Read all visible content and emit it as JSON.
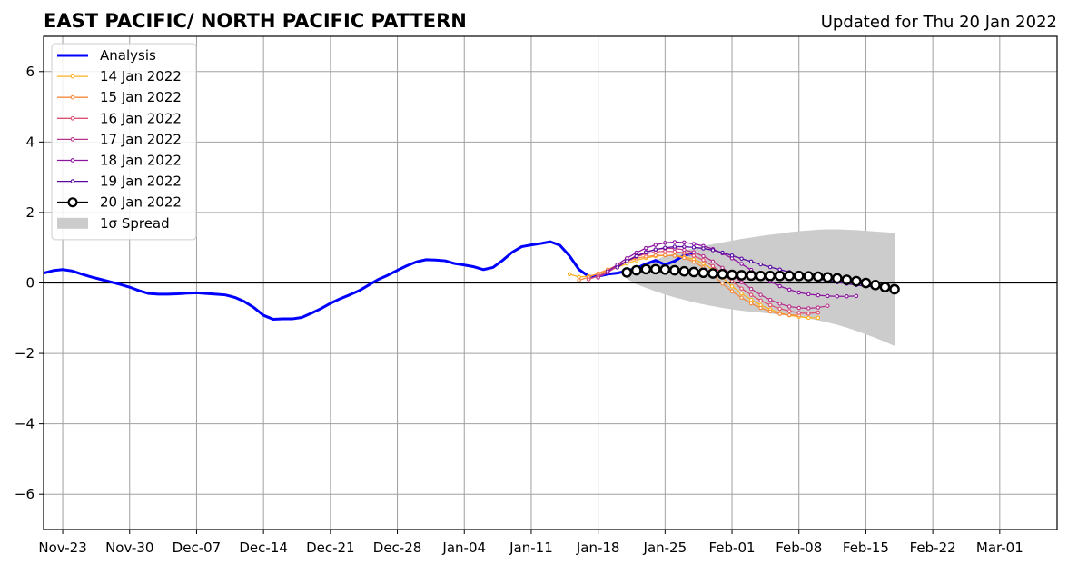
{
  "chart_data": {
    "type": "line",
    "title": "EAST PACIFIC/ NORTH PACIFIC PATTERN",
    "subtitle": "Updated for Thu 20 Jan 2022",
    "xlabel": "",
    "ylabel": "",
    "x_start_date": "2021-11-21",
    "x_end_date": "2022-03-07",
    "ylim": [
      -7,
      7
    ],
    "y_ticks": [
      -6,
      -4,
      -2,
      0,
      2,
      4,
      6
    ],
    "y_tick_labels": [
      "−6",
      "−4",
      "−2",
      "0",
      "2",
      "4",
      "6"
    ],
    "x_ticks": [
      {
        "date": "2021-11-23",
        "label": "Nov-23"
      },
      {
        "date": "2021-11-30",
        "label": "Nov-30"
      },
      {
        "date": "2021-12-07",
        "label": "Dec-07"
      },
      {
        "date": "2021-12-14",
        "label": "Dec-14"
      },
      {
        "date": "2021-12-21",
        "label": "Dec-21"
      },
      {
        "date": "2021-12-28",
        "label": "Dec-28"
      },
      {
        "date": "2022-01-04",
        "label": "Jan-04"
      },
      {
        "date": "2022-01-11",
        "label": "Jan-11"
      },
      {
        "date": "2022-01-18",
        "label": "Jan-18"
      },
      {
        "date": "2022-01-25",
        "label": "Jan-25"
      },
      {
        "date": "2022-02-01",
        "label": "Feb-01"
      },
      {
        "date": "2022-02-08",
        "label": "Feb-08"
      },
      {
        "date": "2022-02-15",
        "label": "Feb-15"
      },
      {
        "date": "2022-02-22",
        "label": "Feb-22"
      },
      {
        "date": "2022-03-01",
        "label": "Mar-01"
      }
    ],
    "grid": true,
    "legend_position": "top-left",
    "analysis": {
      "name": "Analysis",
      "color": "#0000ff",
      "start_date": "2021-11-21",
      "values": [
        0.28,
        0.35,
        0.38,
        0.34,
        0.25,
        0.17,
        0.1,
        0.03,
        -0.04,
        -0.12,
        -0.22,
        -0.3,
        -0.32,
        -0.32,
        -0.31,
        -0.29,
        -0.28,
        -0.3,
        -0.32,
        -0.34,
        -0.41,
        -0.53,
        -0.7,
        -0.92,
        -1.03,
        -1.02,
        -1.02,
        -0.98,
        -0.86,
        -0.73,
        -0.58,
        -0.45,
        -0.34,
        -0.22,
        -0.06,
        0.1,
        0.22,
        0.36,
        0.49,
        0.6,
        0.66,
        0.65,
        0.63,
        0.55,
        0.51,
        0.46,
        0.38,
        0.44,
        0.64,
        0.87,
        1.03,
        1.08,
        1.12,
        1.17,
        1.07,
        0.77,
        0.38,
        0.19,
        0.19,
        0.25,
        0.28,
        0.34,
        0.42,
        0.54,
        0.64,
        0.52,
        0.62,
        0.79,
        0.84
      ]
    },
    "forecasts": [
      {
        "name": "14 Jan 2022",
        "color": "#ffb020",
        "start_date": "2022-01-15",
        "values": [
          0.25,
          0.17,
          0.19,
          0.26,
          0.34,
          0.44,
          0.55,
          0.64,
          0.71,
          0.76,
          0.78,
          0.78,
          0.74,
          0.67,
          0.55,
          0.38,
          0.15,
          -0.1,
          -0.3,
          -0.48,
          -0.63,
          -0.75,
          -0.85,
          -0.92,
          -0.96,
          -0.99,
          -0.99
        ]
      },
      {
        "name": "15 Jan 2022",
        "color": "#f58a3d",
        "start_date": "2022-01-16",
        "values": [
          0.08,
          0.16,
          0.27,
          0.38,
          0.5,
          0.61,
          0.7,
          0.75,
          0.78,
          0.79,
          0.77,
          0.71,
          0.6,
          0.44,
          0.22,
          -0.02,
          -0.24,
          -0.42,
          -0.58,
          -0.71,
          -0.81,
          -0.88,
          -0.91,
          -0.92
        ]
      },
      {
        "name": "16 Jan 2022",
        "color": "#dc5070",
        "start_date": "2022-01-17",
        "values": [
          0.1,
          0.2,
          0.33,
          0.48,
          0.62,
          0.74,
          0.83,
          0.88,
          0.9,
          0.89,
          0.85,
          0.77,
          0.65,
          0.48,
          0.27,
          0.05,
          -0.16,
          -0.34,
          -0.5,
          -0.63,
          -0.73,
          -0.8,
          -0.85,
          -0.87,
          -0.84
        ]
      },
      {
        "name": "17 Jan 2022",
        "color": "#b8348c",
        "start_date": "2022-01-18",
        "values": [
          0.15,
          0.3,
          0.47,
          0.63,
          0.77,
          0.88,
          0.95,
          0.98,
          0.98,
          0.94,
          0.87,
          0.76,
          0.61,
          0.43,
          0.23,
          0.02,
          -0.17,
          -0.34,
          -0.48,
          -0.59,
          -0.67,
          -0.71,
          -0.72,
          -0.7,
          -0.65
        ]
      },
      {
        "name": "18 Jan 2022",
        "color": "#8c16a0",
        "start_date": "2022-01-19",
        "values": [
          0.33,
          0.52,
          0.7,
          0.86,
          0.99,
          1.08,
          1.14,
          1.16,
          1.15,
          1.11,
          1.05,
          0.96,
          0.84,
          0.7,
          0.54,
          0.37,
          0.2,
          0.04,
          -0.09,
          -0.19,
          -0.27,
          -0.32,
          -0.35,
          -0.37,
          -0.38,
          -0.38,
          -0.37
        ]
      },
      {
        "name": "19 Jan 2022",
        "color": "#5a0aa0",
        "start_date": "2022-01-20",
        "values": [
          0.44,
          0.62,
          0.76,
          0.87,
          0.95,
          1.0,
          1.03,
          1.03,
          1.01,
          0.98,
          0.93,
          0.86,
          0.78,
          0.69,
          0.61,
          0.53,
          0.45,
          0.38,
          0.31,
          0.24,
          0.18,
          0.12,
          0.07,
          0.02,
          -0.02,
          -0.06,
          -0.09,
          -0.11
        ]
      },
      {
        "name": "20 Jan 2022",
        "color": "#000000",
        "start_date": "2022-01-21",
        "values": [
          0.3,
          0.36,
          0.39,
          0.39,
          0.38,
          0.36,
          0.33,
          0.31,
          0.29,
          0.27,
          0.25,
          0.23,
          0.22,
          0.21,
          0.2,
          0.2,
          0.2,
          0.2,
          0.2,
          0.19,
          0.18,
          0.16,
          0.13,
          0.09,
          0.05,
          0.0,
          -0.06,
          -0.12,
          -0.18
        ]
      }
    ],
    "spread": {
      "name": "1σ Spread",
      "color": "#cccccc",
      "start_date": "2022-01-21",
      "upper": [
        0.3,
        0.42,
        0.55,
        0.66,
        0.76,
        0.85,
        0.92,
        0.99,
        1.05,
        1.1,
        1.15,
        1.2,
        1.25,
        1.29,
        1.33,
        1.37,
        1.4,
        1.44,
        1.47,
        1.49,
        1.51,
        1.52,
        1.52,
        1.51,
        1.5,
        1.48,
        1.46,
        1.44,
        1.42
      ],
      "lower": [
        0.12,
        -0.04,
        -0.14,
        -0.24,
        -0.33,
        -0.41,
        -0.48,
        -0.55,
        -0.61,
        -0.66,
        -0.71,
        -0.75,
        -0.79,
        -0.82,
        -0.84,
        -0.87,
        -0.9,
        -0.93,
        -0.97,
        -1.01,
        -1.06,
        -1.12,
        -1.19,
        -1.27,
        -1.36,
        -1.46,
        -1.56,
        -1.67,
        -1.79
      ]
    }
  }
}
